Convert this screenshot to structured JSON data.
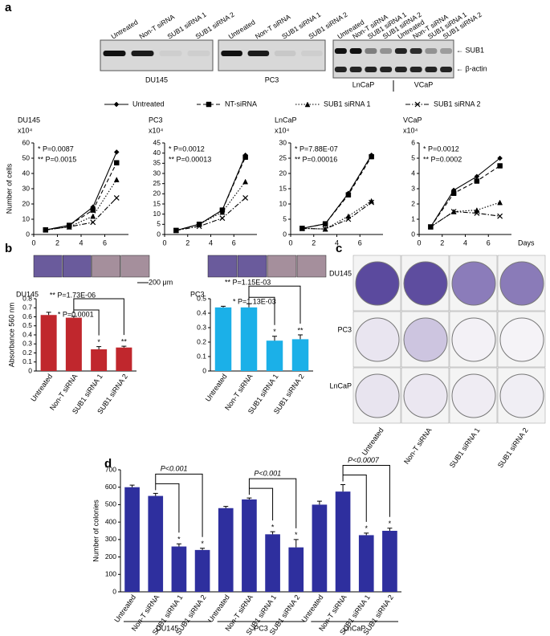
{
  "panel_labels": [
    "a",
    "b",
    "c",
    "d"
  ],
  "blots": [
    {
      "lanes": [
        "Untreated",
        "Non-T siRNA",
        "SUB1 siRNA 1",
        "SUB1 siRNA 2"
      ],
      "cell": "DU145"
    },
    {
      "lanes": [
        "Untreated",
        "Non-T siRNA",
        "SUB1 siRNA 1",
        "SUB1 siRNA 2"
      ],
      "cell": "PC3"
    },
    {
      "lanes": [
        "Untreated",
        "Non-T siRNA",
        "SUB1 siRNA 1",
        "SUB1 siRNA 2",
        "Untreated",
        "Non-T siRNA",
        "SUB1 siRNA 1",
        "SUB1 siRNA 2"
      ],
      "cells": [
        "LnCaP",
        "VCaP"
      ],
      "bands": [
        "← SUB1",
        "← β-actin"
      ]
    }
  ],
  "chart_data": [
    {
      "type": "line",
      "title": "DU145",
      "unit": "x10⁴",
      "ylabel": "Number of cells",
      "annotations": [
        "* P=0.0087",
        "** P=0.0015"
      ],
      "x": [
        1,
        3,
        5,
        7
      ],
      "xlim": [
        0,
        8
      ],
      "xticks": [
        0,
        2,
        4,
        6
      ],
      "ylim": [
        0,
        60
      ],
      "yticks": [
        0,
        10,
        20,
        30,
        40,
        50,
        60
      ],
      "series": [
        {
          "name": "Untreated",
          "color": "#000000",
          "style": "solid",
          "marker": "diamond",
          "values": [
            3,
            6,
            18,
            54
          ]
        },
        {
          "name": "NT-siRNA",
          "color": "#000000",
          "style": "dashed",
          "marker": "square",
          "values": [
            3,
            6,
            16,
            47
          ]
        },
        {
          "name": "SUB1 siRNA 1",
          "color": "#000000",
          "style": "dotted",
          "marker": "triangle",
          "values": [
            3,
            5,
            12,
            36
          ]
        },
        {
          "name": "SUB1 siRNA 2",
          "color": "#000000",
          "style": "dashdot",
          "marker": "x",
          "values": [
            3,
            5,
            8,
            24
          ]
        }
      ]
    },
    {
      "type": "line",
      "title": "PC3",
      "unit": "x10⁴",
      "annotations": [
        "* P=0.0012",
        "** P=0.00013"
      ],
      "x": [
        1,
        3,
        5,
        7
      ],
      "xlim": [
        0,
        8
      ],
      "xticks": [
        0,
        2,
        4,
        6
      ],
      "ylim": [
        0,
        45
      ],
      "yticks": [
        0,
        5,
        10,
        15,
        20,
        25,
        30,
        35,
        40,
        45
      ],
      "series": [
        {
          "color": "#000000",
          "style": "solid",
          "marker": "diamond",
          "values": [
            2,
            5,
            12,
            39
          ]
        },
        {
          "color": "#000000",
          "style": "dashed",
          "marker": "square",
          "values": [
            2,
            5,
            12,
            38
          ]
        },
        {
          "color": "#000000",
          "style": "dotted",
          "marker": "triangle",
          "values": [
            2,
            5,
            11,
            26
          ]
        },
        {
          "color": "#000000",
          "style": "dashdot",
          "marker": "x",
          "values": [
            2,
            4,
            8,
            18
          ]
        }
      ]
    },
    {
      "type": "line",
      "title": "LnCaP",
      "unit": "x10⁴",
      "annotations": [
        "* P=7.88E-07",
        "** P=0.00016"
      ],
      "x": [
        1,
        3,
        5,
        7
      ],
      "xlim": [
        0,
        8
      ],
      "xticks": [
        0,
        2,
        4,
        6
      ],
      "ylim": [
        0,
        30
      ],
      "yticks": [
        0,
        5,
        10,
        15,
        20,
        25,
        30
      ],
      "series": [
        {
          "color": "#000000",
          "style": "solid",
          "marker": "diamond",
          "values": [
            2,
            3.5,
            13.5,
            26
          ]
        },
        {
          "color": "#000000",
          "style": "dashed",
          "marker": "square",
          "values": [
            2,
            3.5,
            13,
            25.5
          ]
        },
        {
          "color": "#000000",
          "style": "dotted",
          "marker": "triangle",
          "values": [
            2,
            1.8,
            6,
            11
          ]
        },
        {
          "color": "#000000",
          "style": "dashdot",
          "marker": "x",
          "values": [
            2,
            1.8,
            5,
            10.5
          ]
        }
      ]
    },
    {
      "type": "line",
      "title": "VCaP",
      "unit": "x10⁴",
      "xlabel": "Days",
      "annotations": [
        "* P=0.0012",
        "** P=0.0002"
      ],
      "x": [
        1,
        3,
        5,
        7
      ],
      "xlim": [
        0,
        8
      ],
      "xticks": [
        0,
        2,
        4,
        6
      ],
      "ylim": [
        0,
        6
      ],
      "yticks": [
        0,
        1,
        2,
        3,
        4,
        5,
        6
      ],
      "series": [
        {
          "color": "#000000",
          "style": "solid",
          "marker": "diamond",
          "values": [
            0.5,
            2.9,
            3.8,
            5.0
          ]
        },
        {
          "color": "#000000",
          "style": "dashed",
          "marker": "square",
          "values": [
            0.5,
            2.7,
            3.5,
            4.5
          ]
        },
        {
          "color": "#000000",
          "style": "dotted",
          "marker": "triangle",
          "values": [
            0.5,
            1.5,
            1.6,
            2.1
          ]
        },
        {
          "color": "#000000",
          "style": "dashdot",
          "marker": "x",
          "values": [
            0.5,
            1.5,
            1.4,
            1.2
          ]
        }
      ]
    },
    {
      "type": "bar",
      "title": "DU145",
      "ylabel": "Absorbance 560 nm",
      "scale_bar": "200 μm",
      "annotations": [
        "** P=1.73E-06",
        "* P=0.0001"
      ],
      "categories": [
        "Untreated",
        "Non-T siRNA",
        "SUB1 siRNA 1",
        "SUB1 siRNA 2"
      ],
      "values": [
        0.62,
        0.59,
        0.24,
        0.26
      ],
      "errors": [
        0.03,
        0.015,
        0.03,
        0.015
      ],
      "star_labels": [
        null,
        null,
        "*",
        "**"
      ],
      "color": "#c0272d",
      "ylim": [
        0,
        0.8
      ],
      "yticks": [
        0,
        0.1,
        0.2,
        0.3,
        0.4,
        0.5,
        0.6,
        0.7,
        0.8
      ]
    },
    {
      "type": "bar",
      "title": "PC3",
      "annotations": [
        "** P=1.15E-03",
        "* P=1.13E-03"
      ],
      "categories": [
        "Untreated",
        "Non-T siRNA",
        "SUB1 siRNA 1",
        "SUB1 siRNA 2"
      ],
      "values": [
        0.44,
        0.44,
        0.21,
        0.22
      ],
      "errors": [
        0.008,
        0.025,
        0.03,
        0.03
      ],
      "star_labels": [
        null,
        null,
        "*",
        "**"
      ],
      "color": "#1bb0e8",
      "ylim": [
        0,
        0.5
      ],
      "yticks": [
        0,
        0.1,
        0.2,
        0.3,
        0.4,
        0.5
      ]
    },
    {
      "type": "bar",
      "ylabel": "Number of colonies",
      "groups": [
        "DU145",
        "PC3",
        "LnCaP"
      ],
      "annotations": [
        "P<0.001",
        "P<0.001",
        "P<0.0007"
      ],
      "categories": [
        "Untreated",
        "Non-T siRNA",
        "SUB1 siRNA 1",
        "SUB1 siRNA 2",
        "Untreated",
        "Non-T siRNA",
        "SUB1 siRNA 1",
        "SUB1 siRNA 2",
        "Untreated",
        "Non-T siRNA",
        "SUB1 siRNA 1",
        "SUB1 siRNA 2"
      ],
      "values": [
        600,
        550,
        260,
        240,
        480,
        530,
        330,
        255,
        500,
        575,
        325,
        350
      ],
      "errors": [
        12,
        15,
        15,
        10,
        10,
        8,
        15,
        45,
        20,
        40,
        12,
        15
      ],
      "star_labels": [
        null,
        null,
        "*",
        "*",
        null,
        null,
        "*",
        "*",
        null,
        null,
        "*",
        "*"
      ],
      "color": "#2e2f9e",
      "ylim": [
        0,
        700
      ],
      "yticks": [
        0,
        100,
        200,
        300,
        400,
        500,
        600,
        700
      ]
    }
  ],
  "colony_plates": {
    "cells": [
      "DU145",
      "PC3",
      "LnCaP"
    ],
    "conditions": [
      "Untreated",
      "Non-T siRNA",
      "SUB1 siRNA 1",
      "SUB1 siRNA 2"
    ]
  }
}
